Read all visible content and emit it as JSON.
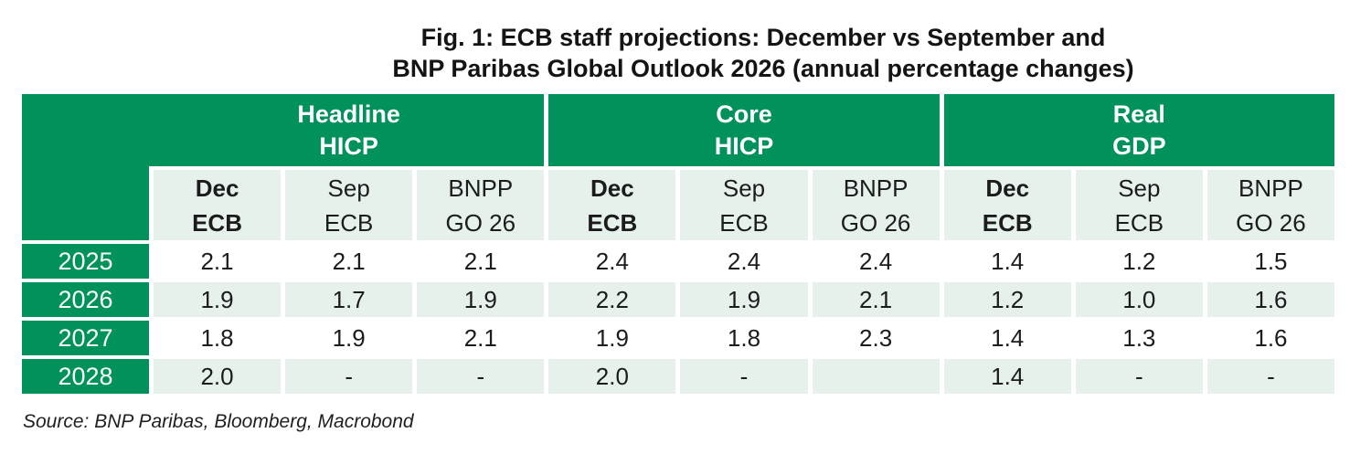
{
  "title": {
    "line1": "Fig. 1: ECB staff projections: December vs September and",
    "line2": "BNP Paribas Global Outlook 2026 (annual percentage changes)"
  },
  "source": "Source: BNP Paribas, Bloomberg, Macrobond",
  "colors": {
    "header_green": "#00925A",
    "light_mint": "#E6F1EB",
    "text": "#1c1c1c"
  },
  "table": {
    "groups": [
      {
        "line1": "Headline",
        "line2": "HICP"
      },
      {
        "line1": "Core",
        "line2": "HICP"
      },
      {
        "line1": "Real",
        "line2": "GDP"
      }
    ],
    "columns": [
      {
        "line1": "Dec",
        "line2": "ECB"
      },
      {
        "line1": "Sep",
        "line2": "ECB"
      },
      {
        "line1": "BNPP",
        "line2": "GO 26"
      },
      {
        "line1": "Dec",
        "line2": "ECB"
      },
      {
        "line1": "Sep",
        "line2": "ECB"
      },
      {
        "line1": "BNPP",
        "line2": "GO 26"
      },
      {
        "line1": "Dec",
        "line2": "ECB"
      },
      {
        "line1": "Sep",
        "line2": "ECB"
      },
      {
        "line1": "BNPP",
        "line2": "GO 26"
      }
    ],
    "rows": [
      {
        "year": "2025",
        "values": [
          "2.1",
          "2.1",
          "2.1",
          "2.4",
          "2.4",
          "2.4",
          "1.4",
          "1.2",
          "1.5"
        ]
      },
      {
        "year": "2026",
        "values": [
          "1.9",
          "1.7",
          "1.9",
          "2.2",
          "1.9",
          "2.1",
          "1.2",
          "1.0",
          "1.6"
        ]
      },
      {
        "year": "2027",
        "values": [
          "1.8",
          "1.9",
          "2.1",
          "1.9",
          "1.8",
          "2.3",
          "1.4",
          "1.3",
          "1.6"
        ]
      },
      {
        "year": "2028",
        "values": [
          "2.0",
          "-",
          "-",
          "2.0",
          "-",
          "",
          "1.4",
          "-",
          "-"
        ]
      }
    ]
  },
  "chart_data": {
    "type": "table",
    "title": "Fig. 1: ECB staff projections: December vs September and BNP Paribas Global Outlook 2026 (annual percentage changes)",
    "column_groups": [
      "Headline HICP",
      "Core HICP",
      "Real GDP"
    ],
    "columns": [
      "Dec ECB",
      "Sep ECB",
      "BNPP GO 26",
      "Dec ECB",
      "Sep ECB",
      "BNPP GO 26",
      "Dec ECB",
      "Sep ECB",
      "BNPP GO 26"
    ],
    "rows": [
      {
        "year": "2025",
        "values": [
          "2.1",
          "2.1",
          "2.1",
          "2.4",
          "2.4",
          "2.4",
          "1.4",
          "1.2",
          "1.5"
        ]
      },
      {
        "year": "2026",
        "values": [
          "1.9",
          "1.7",
          "1.9",
          "2.2",
          "1.9",
          "2.1",
          "1.2",
          "1.0",
          "1.6"
        ]
      },
      {
        "year": "2027",
        "values": [
          "1.8",
          "1.9",
          "2.1",
          "1.9",
          "1.8",
          "2.3",
          "1.4",
          "1.3",
          "1.6"
        ]
      },
      {
        "year": "2028",
        "values": [
          "2.0",
          "-",
          "-",
          "2.0",
          "-",
          "",
          "1.4",
          "-",
          "-"
        ]
      }
    ],
    "source": "Source: BNP Paribas, Bloomberg, Macrobond"
  }
}
